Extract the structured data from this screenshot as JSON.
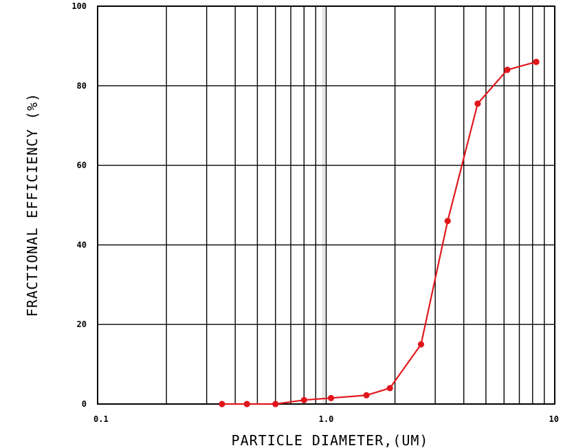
{
  "chart_data": {
    "type": "line",
    "title": "",
    "xlabel": "PARTICLE DIAMETER,(UM)",
    "ylabel": "FRACTIONAL EFFICIENCY (%)",
    "x_scale": "log",
    "xlim": [
      0.1,
      10
    ],
    "ylim": [
      0,
      100
    ],
    "x_tick_labels": [
      "0.1",
      "1.0",
      "10"
    ],
    "y_tick_labels": [
      "0",
      "20",
      "40",
      "60",
      "80",
      "100"
    ],
    "grid": true,
    "legend": "none",
    "highlight_band": [
      0.96,
      0.99
    ],
    "series": [
      {
        "color": "#e0161b",
        "x": [
          0.35,
          0.45,
          0.6,
          0.8,
          1.05,
          1.5,
          1.9,
          2.6,
          3.4,
          4.6,
          6.2,
          8.3
        ],
        "y": [
          0,
          0,
          0,
          1,
          1.5,
          2.2,
          4,
          15,
          46,
          75.5,
          84,
          86
        ]
      }
    ]
  },
  "colors": {
    "grid": "#000000",
    "band": "#e6e6e6",
    "series": "#e0161b"
  }
}
